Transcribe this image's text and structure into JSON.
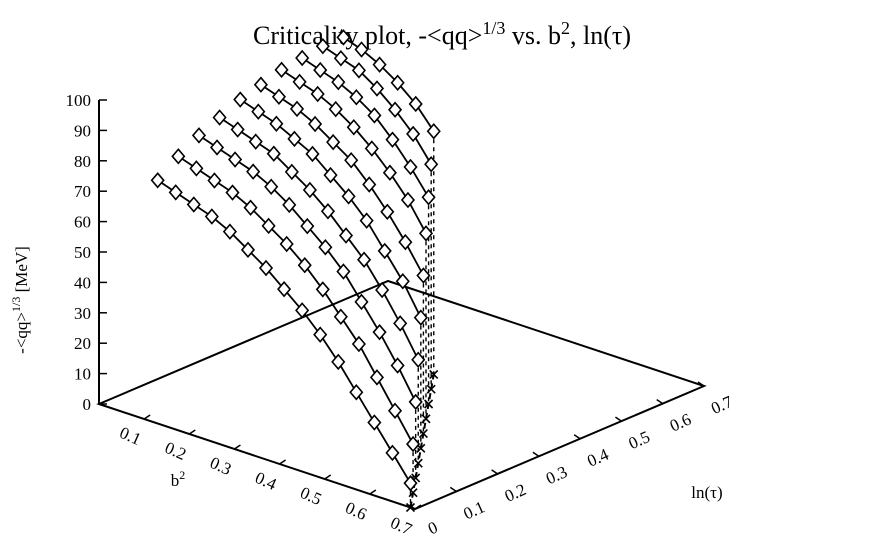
{
  "chart_data": {
    "type": "scatter3d",
    "title": "Criticality plot, -<qq>^(1/3) vs. b², ln(τ)",
    "title_parts": {
      "pre": "Criticality plot, -<qq>",
      "exp": "1/3",
      "mid": " vs. b",
      "sq": "2",
      "post": ", ln(τ)"
    },
    "xlabel": "b²",
    "xlabel_parts": {
      "base": "b",
      "sup": "2"
    },
    "ylabel": "ln(τ)",
    "zlabel": "-<qq>^(1/3) [MeV]",
    "zlabel_parts": {
      "base": "-<qq>",
      "sup": "1/3",
      "unit": " [MeV]"
    },
    "xlim": [
      0,
      0.7
    ],
    "ylim": [
      0,
      0.7
    ],
    "zlim": [
      0,
      100
    ],
    "x_ticks": [
      "0.1",
      "0.2",
      "0.3",
      "0.4",
      "0.5",
      "0.6",
      "0.7"
    ],
    "y_ticks": [
      "0",
      "0.1",
      "0.2",
      "0.3",
      "0.4",
      "0.5",
      "0.6",
      "0.7"
    ],
    "z_ticks": [
      "0",
      "10",
      "20",
      "30",
      "40",
      "50",
      "60",
      "70",
      "80",
      "90",
      "100"
    ],
    "b2_values": [
      0.13,
      0.17,
      0.21,
      0.25,
      0.29,
      0.33,
      0.37,
      0.41,
      0.45,
      0.49,
      0.53,
      0.57,
      0.61,
      0.65,
      0.69
    ],
    "lntau_values": [
      0.0,
      0.05,
      0.1,
      0.15,
      0.2,
      0.25,
      0.3,
      0.35,
      0.4,
      0.45
    ],
    "critical_line": {
      "marker": "cross",
      "points": [
        {
          "b2": 0.69,
          "lntau": 0.0
        },
        {
          "b2": 0.65,
          "lntau": 0.05
        },
        {
          "b2": 0.61,
          "lntau": 0.1
        },
        {
          "b2": 0.57,
          "lntau": 0.15
        },
        {
          "b2": 0.53,
          "lntau": 0.2
        },
        {
          "b2": 0.49,
          "lntau": 0.25
        },
        {
          "b2": 0.45,
          "lntau": 0.3
        },
        {
          "b2": 0.41,
          "lntau": 0.35
        },
        {
          "b2": 0.37,
          "lntau": 0.4
        },
        {
          "b2": 0.33,
          "lntau": 0.45
        }
      ]
    },
    "series": [
      {
        "lntau": 0.0,
        "values": [
          80,
          78,
          76,
          74,
          71,
          67,
          63,
          58,
          53,
          47,
          40,
          32,
          24,
          16,
          8
        ]
      },
      {
        "lntau": 0.05,
        "values": [
          85,
          83,
          81,
          79,
          76,
          72,
          68,
          63,
          57,
          50,
          43,
          34,
          25,
          16
        ]
      },
      {
        "lntau": 0.1,
        "values": [
          89,
          87,
          85,
          83,
          80,
          76,
          71,
          66,
          60,
          52,
          44,
          35,
          25
        ]
      },
      {
        "lntau": 0.15,
        "values": [
          92,
          90,
          88,
          86,
          82,
          78,
          73,
          67,
          61,
          53,
          44,
          34
        ]
      },
      {
        "lntau": 0.2,
        "values": [
          95,
          93,
          91,
          88,
          85,
          80,
          75,
          69,
          61,
          53,
          43
        ]
      },
      {
        "lntau": 0.25,
        "values": [
          97,
          95,
          93,
          90,
          86,
          82,
          76,
          69,
          61,
          52
        ]
      },
      {
        "lntau": 0.3,
        "values": [
          99,
          97,
          95,
          92,
          88,
          83,
          77,
          70,
          61
        ]
      },
      {
        "lntau": 0.35,
        "values": [
          100,
          98,
          96,
          93,
          89,
          83,
          76,
          68
        ]
      },
      {
        "lntau": 0.4,
        "values": [
          101,
          99,
          97,
          93,
          88,
          82,
          74
        ]
      },
      {
        "lntau": 0.45,
        "values": [
          101,
          99,
          96,
          92,
          87,
          80
        ]
      }
    ],
    "grid": false,
    "legend": "none"
  }
}
